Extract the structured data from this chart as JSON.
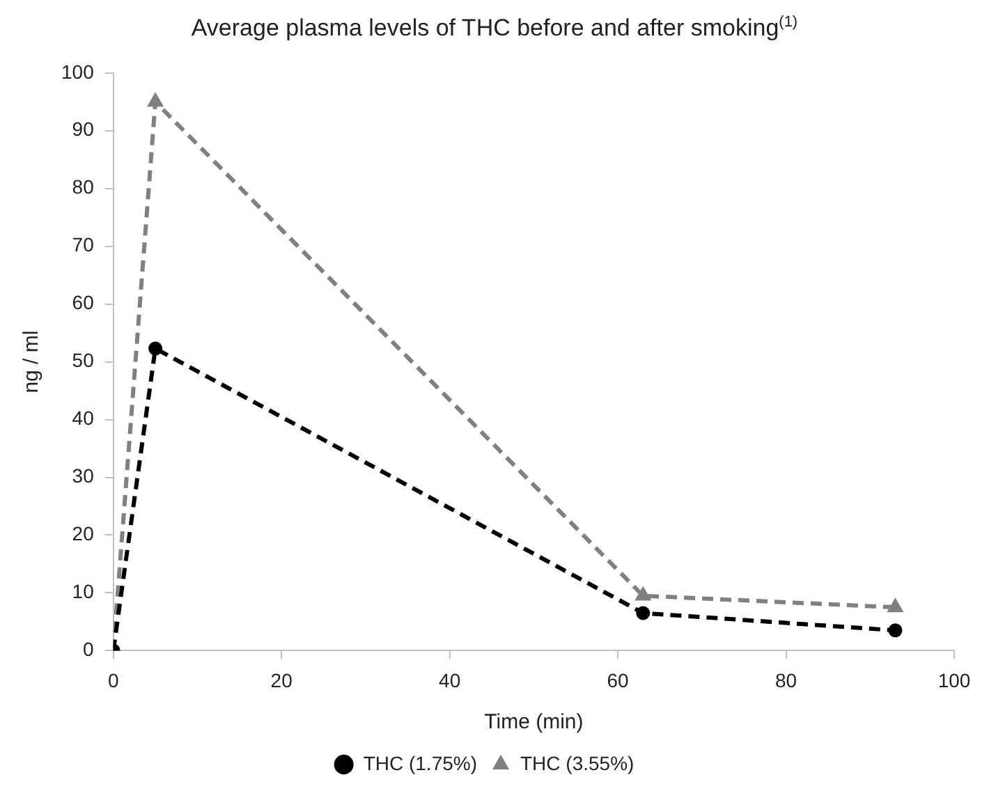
{
  "chart_data": {
    "type": "line",
    "title": "Average plasma levels of THC before and after smoking$^{(1)}$",
    "xlabel": "Time (min)",
    "ylabel": "ng / ml",
    "x": [
      0,
      5,
      63,
      93
    ],
    "series": [
      {
        "name": "THC (1.75%)",
        "color": "#000000",
        "values": [
          0,
          52.3,
          6.5,
          3.5
        ],
        "marker": "circle",
        "line_style": "dashed"
      },
      {
        "name": "THC (3.55%)",
        "color": "#808080",
        "values": [
          0,
          95,
          9.5,
          7.5
        ],
        "marker": "triangle",
        "line_style": "dashed"
      }
    ],
    "xlim": [
      0,
      100
    ],
    "xticks": [
      0,
      20,
      40,
      60,
      80,
      100
    ],
    "ylim": [
      0,
      100
    ],
    "yticks": [
      0,
      10,
      20,
      30,
      40,
      50,
      60,
      70,
      80,
      90,
      100
    ],
    "grid": false,
    "legend": "bottom"
  }
}
